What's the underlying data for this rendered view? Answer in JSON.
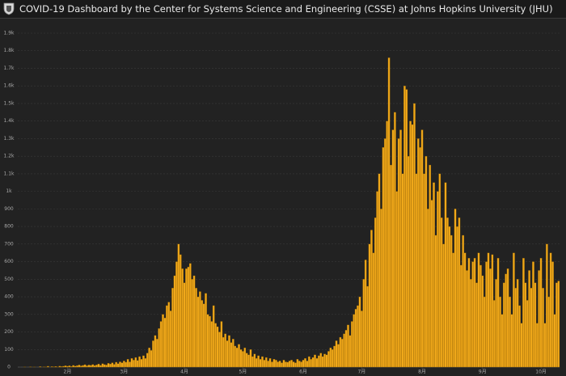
{
  "header": {
    "title": "COVID-19 Dashboard by the Center for Systems Science and Engineering (CSSE) at Johns Hopkins University (JHU)"
  },
  "chart_data": {
    "type": "bar",
    "color": "#f0a81a",
    "grid": true,
    "ylim": [
      0,
      1900
    ],
    "yticks": [
      0,
      100,
      200,
      300,
      400,
      500,
      600,
      700,
      800,
      900,
      {
        "value": 1000,
        "label": "1k"
      },
      {
        "value": 1100,
        "label": "1.1k"
      },
      {
        "value": 1200,
        "label": "1.2k"
      },
      {
        "value": 1300,
        "label": "1.3k"
      },
      {
        "value": 1400,
        "label": "1.4k"
      },
      {
        "value": 1500,
        "label": "1.5k"
      },
      {
        "value": 1600,
        "label": "1.6k"
      },
      {
        "value": 1700,
        "label": "1.7k"
      },
      {
        "value": 1800,
        "label": "1.8k"
      },
      {
        "value": 1900,
        "label": "1.9k"
      }
    ],
    "categories": [
      null,
      null,
      null,
      null,
      null,
      null,
      null,
      null,
      null,
      null,
      null,
      null,
      null,
      null,
      null,
      null,
      null,
      null,
      null,
      null,
      null,
      null,
      null,
      null,
      null,
      "2月",
      null,
      null,
      null,
      null,
      null,
      null,
      null,
      null,
      null,
      null,
      null,
      null,
      null,
      null,
      null,
      null,
      null,
      null,
      null,
      null,
      null,
      null,
      null,
      null,
      null,
      null,
      null,
      null,
      "3月",
      null,
      null,
      null,
      null,
      null,
      null,
      null,
      null,
      null,
      null,
      null,
      null,
      null,
      null,
      null,
      null,
      null,
      null,
      null,
      null,
      null,
      null,
      null,
      null,
      null,
      null,
      null,
      null,
      null,
      null,
      "4月",
      null,
      null,
      null,
      null,
      null,
      null,
      null,
      null,
      null,
      null,
      null,
      null,
      null,
      null,
      null,
      null,
      null,
      null,
      null,
      null,
      null,
      null,
      null,
      null,
      null,
      null,
      null,
      null,
      null,
      "5月",
      null,
      null,
      null,
      null,
      null,
      null,
      null,
      null,
      null,
      null,
      null,
      null,
      null,
      null,
      null,
      null,
      null,
      null,
      null,
      null,
      null,
      null,
      null,
      null,
      null,
      null,
      null,
      null,
      null,
      null,
      "6月",
      null,
      null,
      null,
      null,
      null,
      null,
      null,
      null,
      null,
      null,
      null,
      null,
      null,
      null,
      null,
      null,
      null,
      null,
      null,
      null,
      null,
      null,
      null,
      null,
      null,
      null,
      null,
      null,
      null,
      "7月",
      null,
      null,
      null,
      null,
      null,
      null,
      null,
      null,
      null,
      null,
      null,
      null,
      null,
      null,
      null,
      null,
      null,
      null,
      null,
      null,
      null,
      null,
      null,
      null,
      null,
      null,
      null,
      null,
      null,
      null,
      "8月",
      null,
      null,
      null,
      null,
      null,
      null,
      null,
      null,
      null,
      null,
      null,
      null,
      null,
      null,
      null,
      null,
      null,
      null,
      null,
      null,
      null,
      null,
      null,
      null,
      null,
      null,
      null,
      null,
      null,
      null,
      "9月",
      null,
      null,
      null,
      null,
      null,
      null,
      null,
      null,
      null,
      null,
      null,
      null,
      null,
      null,
      null,
      null,
      null,
      null,
      null,
      null,
      null,
      null,
      null,
      null,
      null,
      null,
      null,
      null,
      null,
      "10月",
      null,
      null,
      null,
      null,
      null,
      null,
      null,
      null,
      null
    ],
    "values": [
      0,
      0,
      0,
      1,
      0,
      0,
      2,
      0,
      1,
      0,
      0,
      3,
      0,
      2,
      1,
      5,
      0,
      3,
      2,
      4,
      1,
      6,
      3,
      5,
      8,
      5,
      8,
      4,
      10,
      6,
      9,
      12,
      7,
      10,
      14,
      8,
      12,
      10,
      15,
      9,
      13,
      18,
      10,
      20,
      15,
      12,
      22,
      18,
      25,
      16,
      28,
      20,
      30,
      25,
      35,
      28,
      45,
      30,
      50,
      40,
      55,
      38,
      60,
      45,
      65,
      50,
      80,
      110,
      95,
      150,
      180,
      160,
      220,
      260,
      300,
      280,
      350,
      370,
      320,
      450,
      520,
      600,
      700,
      640,
      560,
      480,
      560,
      570,
      590,
      500,
      520,
      450,
      400,
      430,
      380,
      360,
      420,
      300,
      290,
      260,
      350,
      250,
      230,
      200,
      260,
      170,
      190,
      150,
      180,
      140,
      160,
      120,
      110,
      130,
      100,
      90,
      110,
      80,
      70,
      100,
      60,
      75,
      50,
      65,
      45,
      60,
      40,
      55,
      35,
      50,
      30,
      45,
      40,
      30,
      35,
      25,
      40,
      30,
      28,
      35,
      40,
      30,
      25,
      45,
      35,
      30,
      40,
      50,
      35,
      60,
      45,
      55,
      70,
      50,
      65,
      80,
      60,
      75,
      70,
      90,
      110,
      100,
      120,
      150,
      130,
      170,
      160,
      190,
      210,
      240,
      180,
      260,
      300,
      330,
      350,
      400,
      320,
      500,
      610,
      460,
      700,
      780,
      650,
      850,
      1000,
      1100,
      900,
      1250,
      1300,
      1400,
      1760,
      1150,
      1350,
      1450,
      1000,
      1300,
      1350,
      1100,
      1600,
      1580,
      1200,
      1400,
      1380,
      1500,
      1100,
      1300,
      1250,
      1350,
      1100,
      1200,
      900,
      1150,
      950,
      1050,
      750,
      1000,
      1100,
      850,
      700,
      1050,
      850,
      800,
      750,
      650,
      900,
      800,
      850,
      580,
      750,
      650,
      550,
      620,
      500,
      600,
      620,
      480,
      650,
      580,
      520,
      400,
      600,
      650,
      560,
      640,
      380,
      500,
      620,
      400,
      300,
      480,
      530,
      560,
      400,
      300,
      650,
      450,
      500,
      350,
      250,
      620,
      480,
      380,
      550,
      450,
      600,
      480,
      250,
      550,
      620,
      450,
      250,
      700,
      400,
      650,
      600,
      300,
      480,
      490
    ]
  }
}
